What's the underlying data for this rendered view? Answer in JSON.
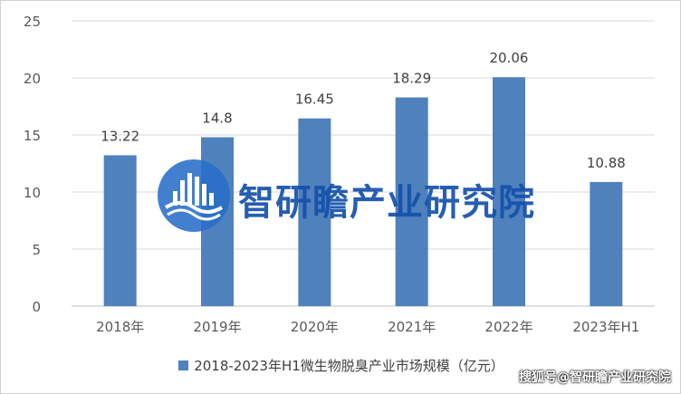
{
  "chart_data": {
    "type": "bar",
    "categories": [
      "2018年",
      "2019年",
      "2020年",
      "2021年",
      "2022年",
      "2023年H1"
    ],
    "series": [
      {
        "name": "2018-2023年H1微生物脱臭产业市场规模（亿元）",
        "values": [
          13.22,
          14.8,
          16.45,
          18.29,
          20.06,
          10.88
        ]
      }
    ],
    "data_labels": [
      "13.22",
      "14.8",
      "16.45",
      "18.29",
      "20.06",
      "10.88"
    ],
    "y_ticks": [
      "0",
      "5",
      "10",
      "15",
      "20",
      "25"
    ],
    "ylim": [
      0,
      25
    ],
    "grid": true,
    "legend_position": "bottom",
    "title": "",
    "xlabel": "",
    "ylabel": ""
  },
  "colors": {
    "bar": "#4f81bd",
    "grid": "#d9d9d9",
    "axis_text": "#595959"
  },
  "watermark": {
    "text": "智研瞻产业研究院"
  },
  "credit": {
    "text": "搜狐号@智研瞻产业研究院"
  }
}
